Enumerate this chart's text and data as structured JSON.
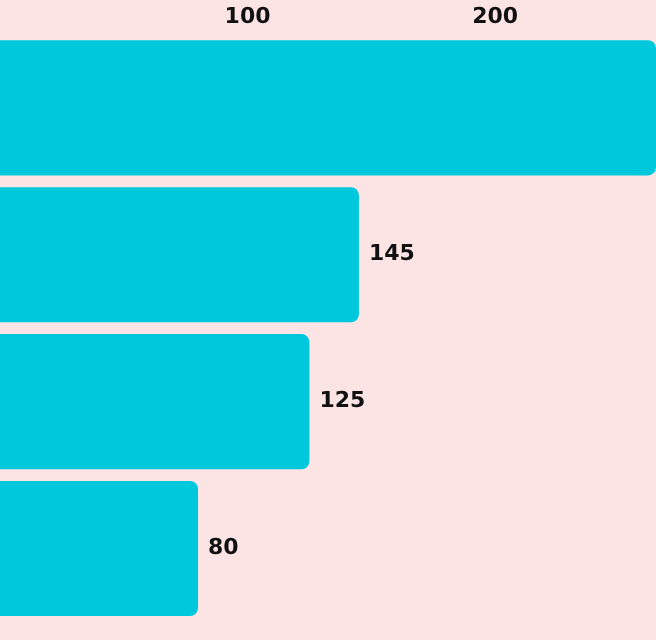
{
  "chart_data": {
    "type": "bar",
    "orientation": "horizontal",
    "categories": [
      null,
      null,
      null,
      null
    ],
    "values": [
      265,
      145,
      125,
      80
    ],
    "value_labels": [
      null,
      "145",
      "125",
      "80"
    ],
    "color": "#00c8dc",
    "xlim": [
      0,
      265
    ],
    "xticks": [
      100,
      200
    ],
    "grid": false,
    "legend": false
  }
}
